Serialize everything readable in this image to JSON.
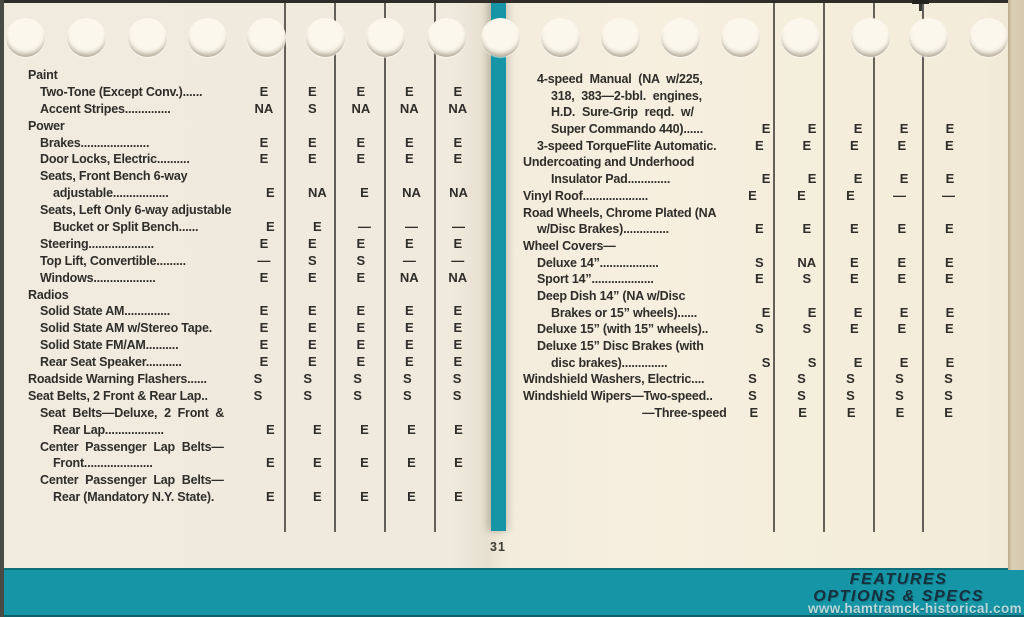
{
  "page": {
    "number": "31"
  },
  "footer": {
    "line1": "FEATURES",
    "line2": "OPTIONS & SPECS",
    "watermark": "www.hamtramck-historical.com"
  },
  "colors": {
    "teal": "#1595a6",
    "paper": "#f2ecdf",
    "ink": "#2e2d29"
  },
  "tables": [
    {
      "name": "left",
      "rows": [
        {
          "label": "Paint",
          "indent": 0,
          "values": []
        },
        {
          "label": "Two-Tone (Except Conv.)......",
          "indent": 1,
          "values": [
            "E",
            "E",
            "E",
            "E",
            "E"
          ]
        },
        {
          "label": "Accent Stripes..............",
          "indent": 1,
          "values": [
            "NA",
            "S",
            "NA",
            "NA",
            "NA"
          ]
        },
        {
          "label": "Power",
          "indent": 0,
          "values": []
        },
        {
          "label": "Brakes.....................",
          "indent": 1,
          "values": [
            "E",
            "E",
            "E",
            "E",
            "E"
          ]
        },
        {
          "label": "Door Locks, Electric..........",
          "indent": 1,
          "values": [
            "E",
            "E",
            "E",
            "E",
            "E"
          ]
        },
        {
          "label": "Seats, Front Bench 6-way",
          "indent": 1,
          "values": []
        },
        {
          "label": "adjustable.................",
          "indent": 2,
          "values": [
            "E",
            "NA",
            "E",
            "NA",
            "NA"
          ]
        },
        {
          "label": "Seats, Left Only 6-way adjustable",
          "indent": 1,
          "values": []
        },
        {
          "label": "Bucket or Split Bench......",
          "indent": 2,
          "values": [
            "E",
            "E",
            "—",
            "—",
            "—"
          ]
        },
        {
          "label": "Steering....................",
          "indent": 1,
          "values": [
            "E",
            "E",
            "E",
            "E",
            "E"
          ]
        },
        {
          "label": "Top Lift, Convertible.........",
          "indent": 1,
          "values": [
            "—",
            "S",
            "S",
            "—",
            "—"
          ]
        },
        {
          "label": "Windows...................",
          "indent": 1,
          "values": [
            "E",
            "E",
            "E",
            "NA",
            "NA"
          ]
        },
        {
          "label": "Radios",
          "indent": 0,
          "values": []
        },
        {
          "label": "Solid State AM..............",
          "indent": 1,
          "values": [
            "E",
            "E",
            "E",
            "E",
            "E"
          ]
        },
        {
          "label": "Solid State AM w/Stereo Tape.",
          "indent": 1,
          "values": [
            "E",
            "E",
            "E",
            "E",
            "E"
          ]
        },
        {
          "label": "Solid State FM/AM..........",
          "indent": 1,
          "values": [
            "E",
            "E",
            "E",
            "E",
            "E"
          ]
        },
        {
          "label": "Rear Seat Speaker...........",
          "indent": 1,
          "values": [
            "E",
            "E",
            "E",
            "E",
            "E"
          ]
        },
        {
          "label": "Roadside Warning Flashers......",
          "indent": 0,
          "values": [
            "S",
            "S",
            "S",
            "S",
            "S"
          ]
        },
        {
          "label": "Seat Belts, 2 Front & Rear Lap..",
          "indent": 0,
          "values": [
            "S",
            "S",
            "S",
            "S",
            "S"
          ]
        },
        {
          "label": "Seat Belts—Deluxe, 2 Front &",
          "indent": 1,
          "wide": true,
          "values": []
        },
        {
          "label": "Rear Lap..................",
          "indent": 2,
          "values": [
            "E",
            "E",
            "E",
            "E",
            "E"
          ]
        },
        {
          "label": "Center Passenger Lap Belts—",
          "indent": 1,
          "wide": true,
          "values": []
        },
        {
          "label": "Front.....................",
          "indent": 2,
          "values": [
            "E",
            "E",
            "E",
            "E",
            "E"
          ]
        },
        {
          "label": "Center Passenger Lap Belts—",
          "indent": 1,
          "wide": true,
          "values": []
        },
        {
          "label": "Rear (Mandatory N.Y. State).",
          "indent": 2,
          "values": [
            "E",
            "E",
            "E",
            "E",
            "E"
          ]
        }
      ]
    },
    {
      "name": "right",
      "rows": [
        {
          "label": "4-speed Manual (NA w/225,",
          "indent": 1,
          "wide": true,
          "values": []
        },
        {
          "label": "318, 383—2-bbl. engines,",
          "indent": 2,
          "wide": true,
          "values": []
        },
        {
          "label": "H.D. Sure-Grip reqd. w/",
          "indent": 2,
          "wide": true,
          "values": []
        },
        {
          "label": "Super Commando 440)......",
          "indent": 2,
          "values": [
            "E",
            "E",
            "E",
            "E",
            "E"
          ]
        },
        {
          "label": "3-speed TorqueFlite Automatic.",
          "indent": 1,
          "values": [
            "E",
            "E",
            "E",
            "E",
            "E"
          ]
        },
        {
          "label": "Undercoating and Underhood",
          "indent": 0,
          "values": []
        },
        {
          "label": "Insulator Pad.............",
          "indent": 2,
          "values": [
            "E",
            "E",
            "E",
            "E",
            "E"
          ]
        },
        {
          "label": "Vinyl Roof....................",
          "indent": 0,
          "values": [
            "E",
            "E",
            "E",
            "—",
            "—"
          ]
        },
        {
          "label": "Road Wheels, Chrome Plated (NA",
          "indent": 0,
          "values": []
        },
        {
          "label": "w/Disc Brakes)..............",
          "indent": 1,
          "values": [
            "E",
            "E",
            "E",
            "E",
            "E"
          ]
        },
        {
          "label": "Wheel Covers—",
          "indent": 0,
          "values": []
        },
        {
          "label": "Deluxe 14”..................",
          "indent": 1,
          "values": [
            "S",
            "NA",
            "E",
            "E",
            "E"
          ]
        },
        {
          "label": "Sport 14”...................",
          "indent": 1,
          "values": [
            "E",
            "S",
            "E",
            "E",
            "E"
          ]
        },
        {
          "label": "Deep Dish 14” (NA w/Disc",
          "indent": 1,
          "values": []
        },
        {
          "label": "Brakes or 15” wheels)......",
          "indent": 2,
          "values": [
            "E",
            "E",
            "E",
            "E",
            "E"
          ]
        },
        {
          "label": "Deluxe 15” (with 15” wheels)..",
          "indent": 1,
          "values": [
            "S",
            "S",
            "E",
            "E",
            "E"
          ]
        },
        {
          "label": "Deluxe 15” Disc Brakes (with",
          "indent": 1,
          "values": []
        },
        {
          "label": "disc brakes)..............",
          "indent": 2,
          "values": [
            "S",
            "S",
            "E",
            "E",
            "E"
          ]
        },
        {
          "label": "Windshield Washers, Electric....",
          "indent": 0,
          "values": [
            "S",
            "S",
            "S",
            "S",
            "S"
          ]
        },
        {
          "label": "Windshield Wipers—Two-speed..",
          "indent": 0,
          "values": [
            "S",
            "S",
            "S",
            "S",
            "S"
          ]
        },
        {
          "label": "—Three-speed",
          "indent": 0,
          "align": "right",
          "values": [
            "E",
            "E",
            "E",
            "E",
            "E"
          ]
        }
      ]
    }
  ]
}
